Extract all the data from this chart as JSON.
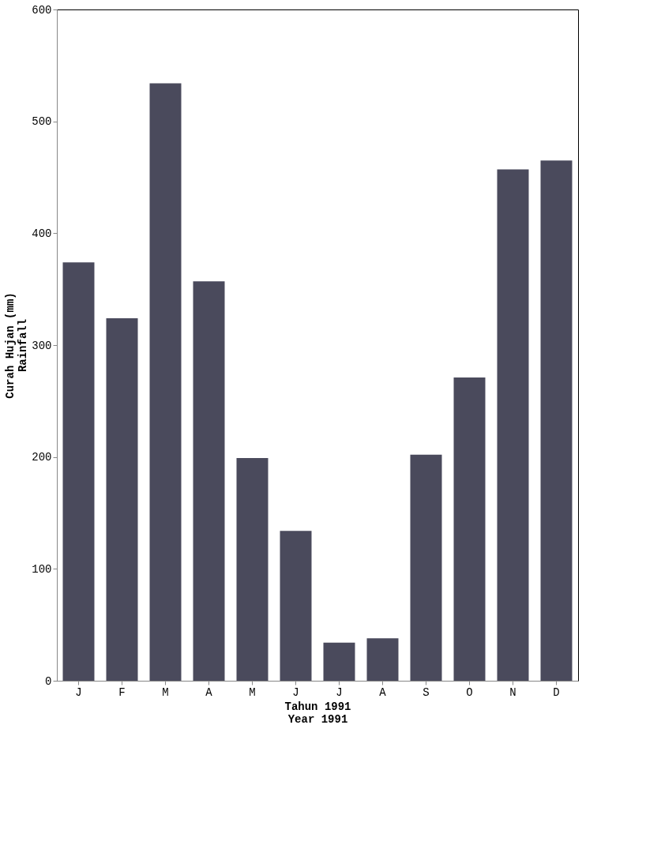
{
  "chart_data": {
    "type": "bar",
    "ylabel": "Curah Hujan (mm)\nRainfall",
    "xlabel": "Tahun 1991\nYear 1991",
    "categories": [
      "J",
      "F",
      "M",
      "A",
      "M",
      "J",
      "J",
      "A",
      "S",
      "O",
      "N",
      "D"
    ],
    "values": [
      374,
      324,
      534,
      357,
      199,
      134,
      34,
      38,
      202,
      271,
      457,
      465
    ],
    "color": "#4a4a5c",
    "ylim": [
      0,
      600
    ],
    "yticks": [
      0,
      100,
      200,
      300,
      400,
      500,
      600
    ],
    "grid": false
  }
}
